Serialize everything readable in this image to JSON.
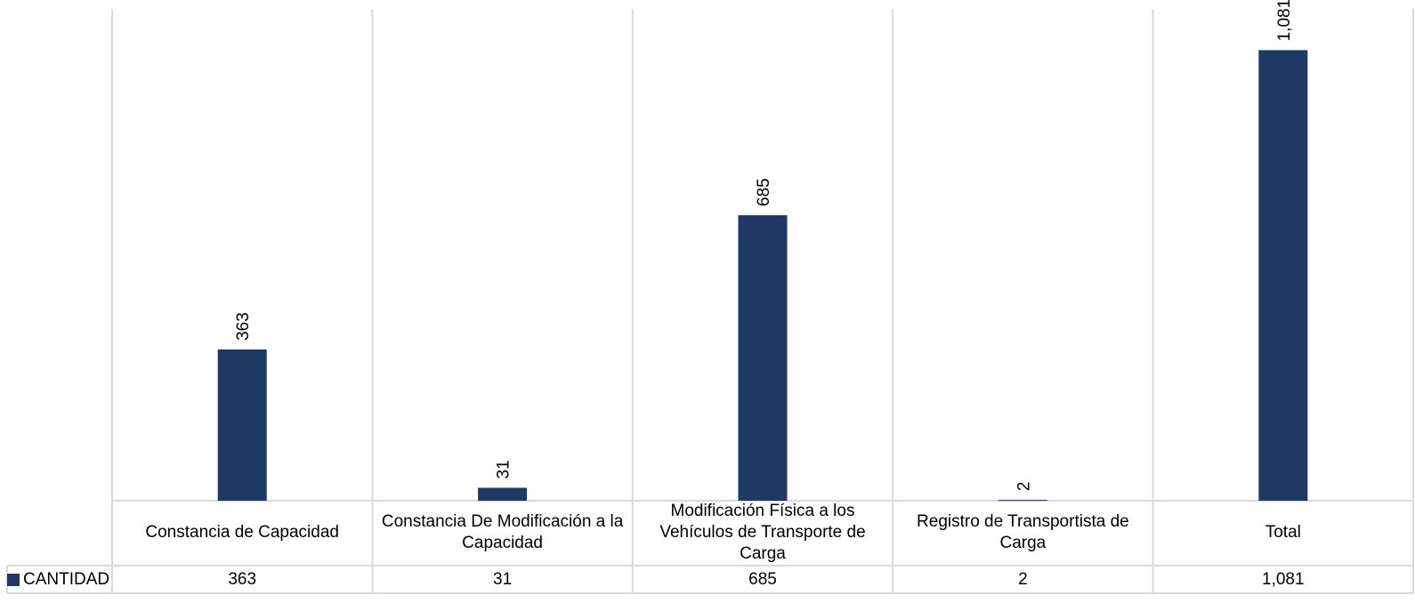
{
  "chart_data": {
    "type": "bar",
    "categories": [
      "Constancia de Capacidad",
      "Constancia De Modificación a la Capacidad",
      "Modificación Física a los Vehículos de Transporte de Carga",
      "Registro de Transportista de Carga",
      "Total"
    ],
    "series": [
      {
        "name": "CANTIDAD",
        "values": [
          363,
          31,
          685,
          2,
          1081
        ]
      }
    ],
    "data_labels": [
      "363",
      "31",
      "685",
      "2",
      "1,081"
    ],
    "table_values": [
      "363",
      "31",
      "685",
      "2",
      "1,081"
    ],
    "ylim": [
      0,
      1180
    ],
    "grid": true,
    "legend": "data-table-left",
    "bar_color": "#1F3864",
    "grid_color": "#D9D9D9"
  }
}
